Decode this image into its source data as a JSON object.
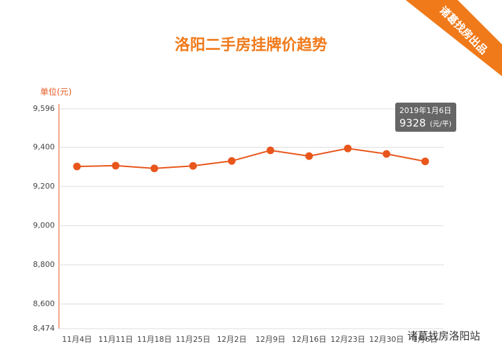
{
  "chart_data": {
    "type": "line",
    "title": "洛阳二手房挂牌价趋势",
    "y_label": "单位(元)",
    "categories": [
      "11月4日",
      "11月11日",
      "11月18日",
      "11月25日",
      "12月2日",
      "12月9日",
      "12月16日",
      "12月23日",
      "12月30日",
      "1月6日"
    ],
    "series": [
      {
        "name": "挂牌价",
        "color": "#e8561c",
        "values": [
          9302,
          9306,
          9292,
          9305,
          9330,
          9384,
          9355,
          9394,
          9366,
          9328
        ]
      }
    ],
    "ylim": [
      8474,
      9596
    ],
    "yticks": [
      {
        "value": 8474,
        "label": "8,474"
      },
      {
        "value": 8600,
        "label": "8,600"
      },
      {
        "value": 8800,
        "label": "8,800"
      },
      {
        "value": 9000,
        "label": "9,000"
      },
      {
        "value": 9200,
        "label": "9,200"
      },
      {
        "value": 9400,
        "label": "9,400"
      },
      {
        "value": 9596,
        "label": "9,596"
      }
    ],
    "grid": true,
    "tooltip": {
      "date": "2019年1月6日",
      "unit": "(元/平)"
    }
  },
  "banner": "诸葛找房出品",
  "watermark": "诸葛找房洛阳站"
}
